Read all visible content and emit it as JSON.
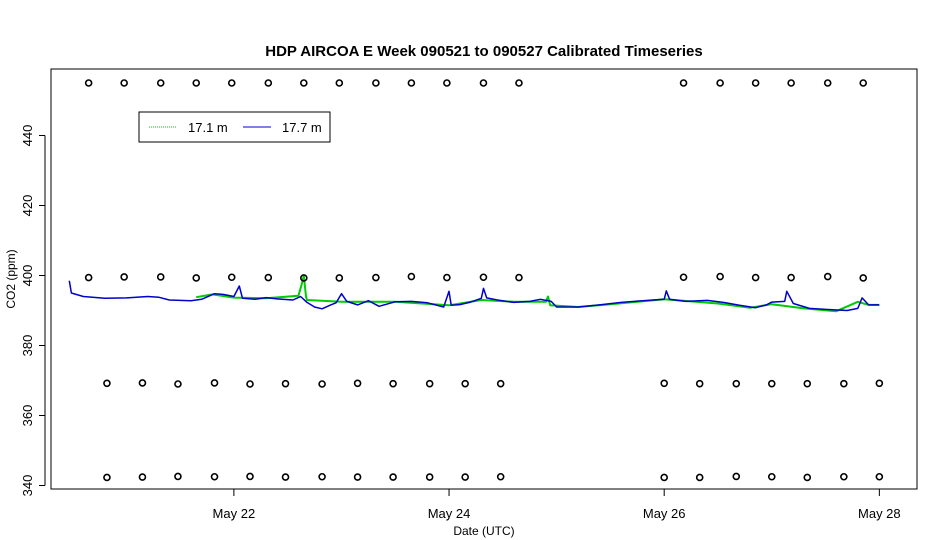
{
  "chart_data": {
    "type": "line",
    "title": "HDP AIRCOA E  Week 090521 to 090527  Calibrated Timeseries",
    "xlabel": "Date (UTC)",
    "ylabel": "CO2 (ppm)",
    "x_ticks": [
      {
        "label": "May 22",
        "day": 22
      },
      {
        "label": "May 24",
        "day": 24
      },
      {
        "label": "May 26",
        "day": 26
      },
      {
        "label": "May 28",
        "day": 28
      }
    ],
    "y_ticks": [
      340,
      360,
      380,
      400,
      420,
      440
    ],
    "xlim_day": [
      20.3,
      28.35
    ],
    "ylim": [
      339,
      459
    ],
    "grid": false,
    "legend": {
      "position": "top-left",
      "entries": [
        {
          "label": "17.1 m",
          "color": "#00cc00"
        },
        {
          "label": "17.7 m",
          "color": "#0000cc"
        }
      ]
    },
    "series": [
      {
        "name": "17.1 m",
        "color": "#00cc00",
        "points": [
          [
            21.65,
            393.8
          ],
          [
            21.8,
            394.6
          ],
          [
            22.0,
            393.7
          ],
          [
            22.3,
            393.5
          ],
          [
            22.6,
            394.2
          ],
          [
            22.63,
            397.5
          ],
          [
            22.65,
            400.0
          ],
          [
            22.67,
            394.0
          ],
          [
            22.68,
            393.0
          ],
          [
            23.0,
            392.5
          ],
          [
            23.5,
            392.5
          ],
          [
            24.0,
            391.5
          ],
          [
            24.3,
            393.0
          ],
          [
            24.6,
            392.5
          ],
          [
            24.9,
            392.5
          ],
          [
            24.92,
            394.0
          ],
          [
            24.94,
            391.5
          ],
          [
            25.2,
            391.0
          ],
          [
            25.5,
            391.8
          ],
          [
            26.0,
            393.2
          ],
          [
            26.5,
            392.0
          ],
          [
            26.8,
            390.8
          ],
          [
            27.0,
            391.8
          ],
          [
            27.3,
            390.6
          ],
          [
            27.6,
            389.8
          ],
          [
            27.8,
            392.5
          ],
          [
            27.9,
            391.6
          ],
          [
            28.0,
            391.6
          ]
        ]
      },
      {
        "name": "17.7 m",
        "color": "#0000cc",
        "points": [
          [
            20.47,
            398.5
          ],
          [
            20.49,
            395.0
          ],
          [
            20.6,
            394.0
          ],
          [
            20.8,
            393.5
          ],
          [
            21.0,
            393.6
          ],
          [
            21.2,
            394.0
          ],
          [
            21.3,
            393.8
          ],
          [
            21.4,
            393.0
          ],
          [
            21.6,
            392.8
          ],
          [
            21.7,
            393.2
          ],
          [
            21.82,
            394.8
          ],
          [
            21.9,
            394.6
          ],
          [
            22.0,
            394.0
          ],
          [
            22.05,
            397.0
          ],
          [
            22.08,
            393.5
          ],
          [
            22.2,
            393.2
          ],
          [
            22.3,
            393.7
          ],
          [
            22.4,
            393.3
          ],
          [
            22.55,
            393.0
          ],
          [
            22.62,
            394.0
          ],
          [
            22.68,
            392.3
          ],
          [
            22.75,
            391.0
          ],
          [
            22.82,
            390.5
          ],
          [
            22.9,
            391.6
          ],
          [
            22.95,
            392.2
          ],
          [
            23.0,
            394.8
          ],
          [
            23.05,
            392.6
          ],
          [
            23.15,
            391.6
          ],
          [
            23.25,
            392.8
          ],
          [
            23.35,
            391.2
          ],
          [
            23.5,
            392.5
          ],
          [
            23.65,
            392.6
          ],
          [
            23.8,
            392.2
          ],
          [
            23.95,
            391.0
          ],
          [
            24.0,
            395.5
          ],
          [
            24.02,
            391.5
          ],
          [
            24.1,
            391.7
          ],
          [
            24.2,
            392.4
          ],
          [
            24.3,
            393.5
          ],
          [
            24.32,
            396.3
          ],
          [
            24.35,
            393.6
          ],
          [
            24.45,
            393.0
          ],
          [
            24.6,
            392.3
          ],
          [
            24.75,
            392.6
          ],
          [
            24.85,
            393.2
          ],
          [
            24.95,
            392.6
          ],
          [
            25.0,
            391.0
          ],
          [
            25.2,
            391.0
          ],
          [
            25.4,
            391.6
          ],
          [
            25.6,
            392.3
          ],
          [
            25.8,
            392.8
          ],
          [
            26.0,
            393.2
          ],
          [
            26.02,
            395.6
          ],
          [
            26.05,
            393.2
          ],
          [
            26.2,
            392.6
          ],
          [
            26.4,
            392.9
          ],
          [
            26.55,
            392.3
          ],
          [
            26.7,
            391.5
          ],
          [
            26.85,
            390.8
          ],
          [
            26.95,
            391.6
          ],
          [
            27.0,
            392.4
          ],
          [
            27.12,
            392.6
          ],
          [
            27.14,
            395.5
          ],
          [
            27.2,
            392.0
          ],
          [
            27.35,
            390.6
          ],
          [
            27.5,
            390.3
          ],
          [
            27.7,
            390.0
          ],
          [
            27.8,
            390.6
          ],
          [
            27.84,
            393.6
          ],
          [
            27.9,
            391.6
          ],
          [
            28.0,
            391.6
          ]
        ]
      },
      {
        "name": "",
        "markers": "circle",
        "points": [
          [
            20.65,
            455.0
          ],
          [
            20.98,
            455.0
          ],
          [
            21.32,
            455.0
          ],
          [
            21.65,
            455.0
          ],
          [
            21.98,
            455.0
          ],
          [
            22.32,
            455.0
          ],
          [
            22.65,
            455.0
          ],
          [
            22.98,
            455.0
          ],
          [
            23.32,
            455.0
          ],
          [
            23.65,
            455.0
          ],
          [
            23.98,
            455.0
          ],
          [
            24.32,
            455.0
          ],
          [
            24.65,
            455.0
          ],
          [
            26.18,
            455.0
          ],
          [
            26.52,
            455.0
          ],
          [
            26.85,
            455.0
          ],
          [
            27.18,
            455.0
          ],
          [
            27.52,
            455.0
          ],
          [
            27.85,
            455.0
          ],
          [
            20.65,
            399.4
          ],
          [
            20.98,
            399.6
          ],
          [
            21.32,
            399.6
          ],
          [
            21.65,
            399.3
          ],
          [
            21.98,
            399.5
          ],
          [
            22.32,
            399.4
          ],
          [
            22.65,
            399.3
          ],
          [
            22.98,
            399.3
          ],
          [
            23.32,
            399.4
          ],
          [
            23.65,
            399.7
          ],
          [
            23.98,
            399.4
          ],
          [
            24.32,
            399.5
          ],
          [
            24.65,
            399.4
          ],
          [
            26.18,
            399.5
          ],
          [
            26.52,
            399.7
          ],
          [
            26.85,
            399.4
          ],
          [
            27.18,
            399.4
          ],
          [
            27.52,
            399.7
          ],
          [
            27.85,
            399.3
          ],
          [
            20.82,
            369.2
          ],
          [
            21.15,
            369.3
          ],
          [
            21.48,
            369.0
          ],
          [
            21.82,
            369.3
          ],
          [
            22.15,
            369.0
          ],
          [
            22.48,
            369.1
          ],
          [
            22.82,
            369.0
          ],
          [
            23.15,
            369.2
          ],
          [
            23.48,
            369.1
          ],
          [
            23.82,
            369.1
          ],
          [
            24.15,
            369.1
          ],
          [
            24.48,
            369.1
          ],
          [
            26.0,
            369.2
          ],
          [
            26.33,
            369.1
          ],
          [
            26.67,
            369.1
          ],
          [
            27.0,
            369.1
          ],
          [
            27.33,
            369.1
          ],
          [
            27.67,
            369.1
          ],
          [
            28.0,
            369.2
          ],
          [
            20.82,
            342.3
          ],
          [
            21.15,
            342.4
          ],
          [
            21.48,
            342.6
          ],
          [
            21.82,
            342.5
          ],
          [
            22.15,
            342.6
          ],
          [
            22.48,
            342.4
          ],
          [
            22.82,
            342.5
          ],
          [
            23.15,
            342.4
          ],
          [
            23.48,
            342.4
          ],
          [
            23.82,
            342.4
          ],
          [
            24.15,
            342.4
          ],
          [
            24.48,
            342.5
          ],
          [
            26.0,
            342.3
          ],
          [
            26.33,
            342.3
          ],
          [
            26.67,
            342.6
          ],
          [
            27.0,
            342.5
          ],
          [
            27.33,
            342.3
          ],
          [
            27.67,
            342.5
          ],
          [
            28.0,
            342.5
          ]
        ]
      }
    ]
  }
}
